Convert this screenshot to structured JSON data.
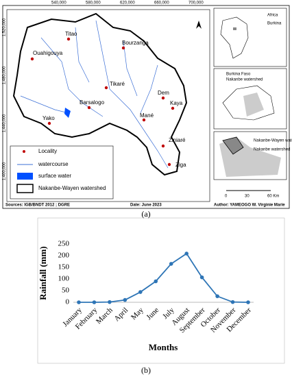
{
  "map": {
    "localities": [
      "Titao",
      "Ouahigouya",
      "Bourzanga",
      "Tikaré",
      "Barsalogo",
      "Dem",
      "Kaya",
      "Yako",
      "Mané",
      "Ziniaré",
      "Ziga"
    ],
    "legend": [
      "Locality",
      "watercourse",
      "surface water",
      "Nakanbe-Wayen watershed"
    ],
    "top_coords": [
      "540,000",
      "580,000",
      "620,000",
      "660,000",
      "700,000"
    ],
    "left_coords": [
      "1,520,000",
      "1,480,000",
      "1,440,000",
      "1,400,000"
    ],
    "inset1": [
      "Africa",
      "Burkina"
    ],
    "inset2": [
      "Burkina Faso",
      "Nakanbe watershed"
    ],
    "inset3": [
      "Nakanbe-Wayen watershed",
      "Nakanbe watershed"
    ],
    "scale": [
      "0",
      "30",
      "60 Km"
    ],
    "sources": "Sources: IGB/BNDT 2012 ; DGRE",
    "date": "Date: June 2023",
    "author": "Author: YAMEOGO W. Virginie Marie",
    "caption": "(a)"
  },
  "chart_data": {
    "type": "line",
    "ylabel": "Rainfall (mm)",
    "xlabel": "Months",
    "caption": "(b)",
    "categories": [
      "January",
      "February",
      "March",
      "April",
      "May",
      "June",
      "July",
      "August",
      "September",
      "October",
      "November",
      "December"
    ],
    "series": [
      {
        "name": "Rainfall",
        "color": "#2e75b6",
        "values": [
          0,
          0,
          1,
          10,
          44,
          90,
          165,
          209,
          107,
          26,
          1,
          0
        ]
      }
    ],
    "ylim": [
      0,
      250
    ],
    "yticks": [
      0,
      50,
      100,
      150,
      200,
      250
    ],
    "grid": false
  }
}
